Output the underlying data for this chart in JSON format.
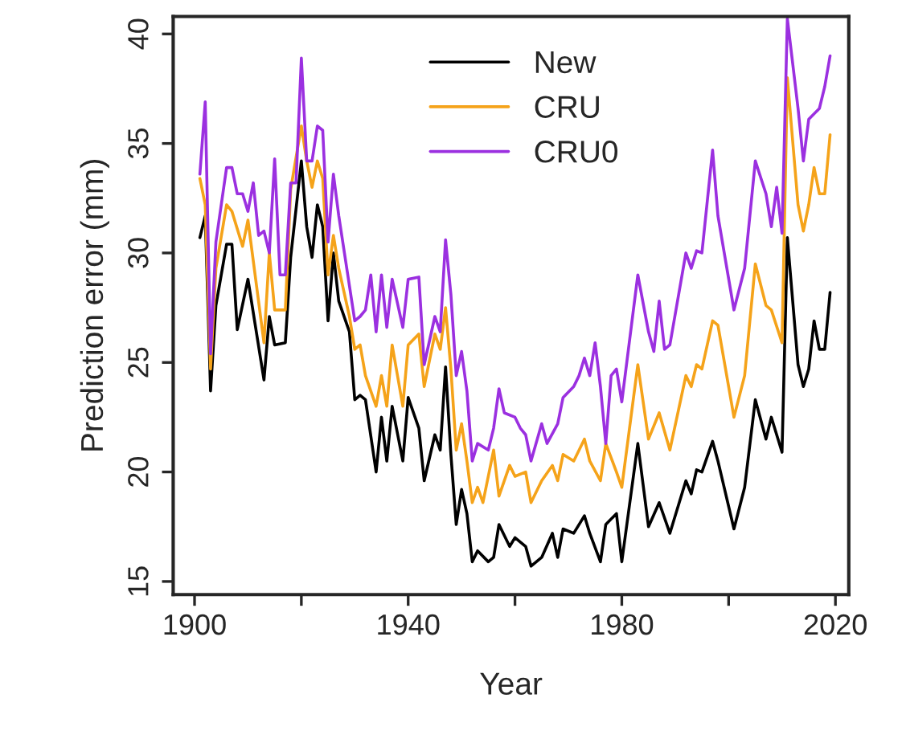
{
  "chart_data": {
    "type": "line",
    "xlabel": "Year",
    "ylabel": "Prediction error (mm)",
    "xlim": [
      1896,
      2022.5
    ],
    "ylim": [
      14.4,
      40.8
    ],
    "xticks": [
      1900,
      {
        "value": 1920,
        "label": null
      },
      1940,
      {
        "value": 1960,
        "label": null
      },
      1980,
      {
        "value": 2000,
        "label": null
      },
      2020
    ],
    "yticks": [
      15,
      20,
      25,
      30,
      35,
      40
    ],
    "grid": false,
    "legend": "top",
    "marker": "none",
    "line_style": "solid",
    "series": [
      {
        "name": "New",
        "color": "#000000",
        "x": [
          1901,
          1902,
          1903,
          1904,
          1906,
          1907,
          1908,
          1910,
          1913,
          1914,
          1915,
          1917,
          1918,
          1920,
          1921,
          1922,
          1923,
          1924,
          1925,
          1926,
          1927,
          1929,
          1930,
          1931,
          1932,
          1934,
          1935,
          1936,
          1937,
          1939,
          1940,
          1942,
          1943,
          1945,
          1946,
          1947,
          1948,
          1949,
          1950,
          1951,
          1952,
          1953,
          1955,
          1956,
          1957,
          1959,
          1960,
          1962,
          1963,
          1965,
          1967,
          1968,
          1969,
          1971,
          1973,
          1974,
          1976,
          1977,
          1979,
          1980,
          1983,
          1985,
          1987,
          1989,
          1992,
          1993,
          1994,
          1995,
          1997,
          1998,
          2001,
          2003,
          2005,
          2007,
          2008,
          2010,
          2011,
          2013,
          2014,
          2015,
          2016,
          2017,
          2018,
          2019
        ],
        "values": [
          30.7,
          31.7,
          23.7,
          27.6,
          30.4,
          30.4,
          26.5,
          28.8,
          24.2,
          27.1,
          25.8,
          25.9,
          29.8,
          34.2,
          31.2,
          29.8,
          32.2,
          31.2,
          26.9,
          30,
          27.8,
          26.4,
          23.3,
          23.5,
          23.3,
          20,
          22.5,
          20.5,
          23,
          20.5,
          23.4,
          22,
          19.6,
          21.7,
          21,
          24.8,
          20.8,
          17.6,
          19.2,
          18.1,
          15.9,
          16.4,
          15.9,
          16.1,
          17.6,
          16.6,
          17,
          16.6,
          15.7,
          16.1,
          17.2,
          16.1,
          17.4,
          17.2,
          18,
          17.2,
          15.9,
          17.6,
          18.1,
          15.9,
          21.3,
          17.5,
          18.6,
          17.2,
          19.6,
          19,
          20.1,
          20,
          21.4,
          20.5,
          17.4,
          19.3,
          23.3,
          21.5,
          22.5,
          20.9,
          30.7,
          24.9,
          23.9,
          24.7,
          26.9,
          25.6,
          25.6,
          28.2
        ]
      },
      {
        "name": "CRU",
        "color": "#f5a31a",
        "x": [
          1901,
          1902,
          1903,
          1904,
          1906,
          1907,
          1909,
          1910,
          1913,
          1914,
          1915,
          1917,
          1918,
          1920,
          1921,
          1922,
          1923,
          1924,
          1925,
          1926,
          1927,
          1929,
          1930,
          1931,
          1932,
          1934,
          1935,
          1936,
          1937,
          1939,
          1940,
          1942,
          1943,
          1945,
          1946,
          1947,
          1948,
          1949,
          1950,
          1951,
          1952,
          1953,
          1954,
          1956,
          1957,
          1959,
          1960,
          1962,
          1963,
          1965,
          1967,
          1968,
          1969,
          1971,
          1973,
          1974,
          1976,
          1977,
          1979,
          1980,
          1983,
          1985,
          1987,
          1989,
          1992,
          1993,
          1994,
          1995,
          1997,
          1998,
          2001,
          2003,
          2005,
          2007,
          2008,
          2010,
          2011,
          2013,
          2014,
          2015,
          2016,
          2017,
          2018,
          2019
        ],
        "values": [
          33.4,
          32.2,
          24.7,
          29.3,
          32.2,
          31.9,
          30.3,
          31.5,
          25.9,
          30,
          27.4,
          27.4,
          32.9,
          35.8,
          34.2,
          33,
          34.2,
          33.4,
          29,
          30.8,
          29.3,
          27.1,
          25.6,
          25.8,
          24.4,
          23,
          24.4,
          23,
          25.8,
          23,
          25.8,
          26.3,
          23.9,
          26.3,
          25.6,
          27.5,
          24.7,
          21,
          22.2,
          20.5,
          18.6,
          19.3,
          18.6,
          21,
          18.9,
          20.3,
          19.8,
          20,
          18.6,
          19.6,
          20.3,
          19.6,
          20.8,
          20.5,
          21.5,
          20.5,
          19.6,
          21.3,
          20,
          19.3,
          24.9,
          21.5,
          22.7,
          21,
          24.4,
          23.9,
          24.9,
          24.7,
          26.9,
          26.7,
          22.5,
          24.4,
          29.5,
          27.6,
          27.4,
          25.9,
          38,
          32.2,
          31,
          32.2,
          33.9,
          32.7,
          32.7,
          35.4
        ]
      },
      {
        "name": "CRU0",
        "color": "#9b30e0",
        "x": [
          1901,
          1902,
          1903,
          1904,
          1906,
          1907,
          1908,
          1909,
          1910,
          1911,
          1912,
          1913,
          1914,
          1915,
          1916,
          1917,
          1918,
          1919,
          1920,
          1921,
          1922,
          1923,
          1924,
          1925,
          1926,
          1927,
          1929,
          1930,
          1931,
          1932,
          1933,
          1934,
          1935,
          1936,
          1937,
          1939,
          1940,
          1942,
          1943,
          1945,
          1946,
          1947,
          1948,
          1949,
          1950,
          1951,
          1952,
          1953,
          1955,
          1956,
          1957,
          1958,
          1960,
          1961,
          1962,
          1963,
          1965,
          1966,
          1968,
          1969,
          1971,
          1972,
          1973,
          1974,
          1975,
          1976,
          1977,
          1978,
          1979,
          1980,
          1983,
          1985,
          1986,
          1987,
          1988,
          1989,
          1992,
          1993,
          1994,
          1995,
          1997,
          1998,
          2001,
          2003,
          2005,
          2007,
          2008,
          2009,
          2010,
          2011,
          2013,
          2014,
          2015,
          2017,
          2018,
          2019
        ],
        "values": [
          33.6,
          36.9,
          25.4,
          30.5,
          33.9,
          33.9,
          32.7,
          32.7,
          31.9,
          33.2,
          30.8,
          31,
          30,
          34.3,
          29,
          29,
          33.2,
          33.2,
          38.9,
          34.2,
          34.2,
          35.8,
          35.6,
          30.5,
          33.6,
          31.7,
          28.5,
          26.9,
          27.1,
          27.4,
          29,
          26.4,
          29,
          26.6,
          28.8,
          26.6,
          28.8,
          28.9,
          24.9,
          27.1,
          26.4,
          30.6,
          28.1,
          24.4,
          25.5,
          23.7,
          20.5,
          21.3,
          21,
          22,
          23.8,
          22.7,
          22.5,
          22,
          21.7,
          20.5,
          22.2,
          21.3,
          22.2,
          23.4,
          23.9,
          24.4,
          25.2,
          24.4,
          25.9,
          23.9,
          21.3,
          24.4,
          24.7,
          23.2,
          29,
          26.4,
          25.5,
          27.8,
          25.6,
          25.8,
          30,
          29.3,
          30.1,
          30,
          34.7,
          31.7,
          27.4,
          29.3,
          34.2,
          32.7,
          31.2,
          33,
          30.9,
          40.7,
          36.6,
          34.2,
          36.1,
          36.6,
          37.6,
          39
        ]
      }
    ]
  }
}
